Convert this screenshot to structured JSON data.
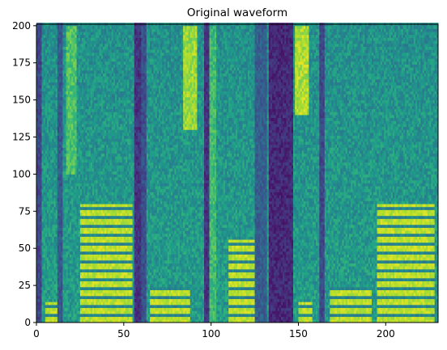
{
  "chart_data": {
    "type": "heatmap",
    "title": "Original waveform",
    "xlabel": "",
    "ylabel": "",
    "colormap": "viridis",
    "xlim": [
      0,
      230
    ],
    "ylim": [
      0,
      201
    ],
    "xticks": [
      0,
      50,
      100,
      150,
      200
    ],
    "yticks": [
      0,
      25,
      50,
      75,
      100,
      125,
      150,
      175,
      200
    ],
    "x_tick_labels": [
      "0",
      "50",
      "100",
      "150",
      "200"
    ],
    "y_tick_labels": [
      "0",
      "25",
      "50",
      "75",
      "100",
      "125",
      "150",
      "175",
      "200"
    ],
    "grid": false,
    "dark_columns": [
      {
        "x0": 0,
        "x1": 3,
        "level": 0.22
      },
      {
        "x0": 12,
        "x1": 15,
        "level": 0.28
      },
      {
        "x0": 56,
        "x1": 60,
        "level": 0.15
      },
      {
        "x0": 60,
        "x1": 63,
        "level": 0.25
      },
      {
        "x0": 96,
        "x1": 99,
        "level": 0.15
      },
      {
        "x0": 125,
        "x1": 132,
        "level": 0.3
      },
      {
        "x0": 133,
        "x1": 147,
        "level": 0.12
      },
      {
        "x0": 162,
        "x1": 165,
        "level": 0.22
      }
    ],
    "bright_regions": [
      {
        "x0": 17,
        "x1": 23,
        "y0": 100,
        "y1": 200,
        "level": 0.72
      },
      {
        "x0": 84,
        "x1": 92,
        "y0": 130,
        "y1": 200,
        "level": 0.85
      },
      {
        "x0": 148,
        "x1": 156,
        "y0": 140,
        "y1": 200,
        "level": 0.88
      },
      {
        "x0": 99,
        "x1": 103,
        "y0": 0,
        "y1": 200,
        "level": 0.68
      }
    ],
    "harmonic_segments": [
      {
        "x0": 5,
        "x1": 12,
        "f0": 6,
        "count": 2,
        "y_top": 14
      },
      {
        "x0": 25,
        "x1": 55,
        "f0": 6,
        "count": 13,
        "y_top": 80
      },
      {
        "x0": 65,
        "x1": 88,
        "f0": 6,
        "count": 4,
        "y_top": 24
      },
      {
        "x0": 110,
        "x1": 125,
        "f0": 6,
        "count": 8,
        "y_top": 55
      },
      {
        "x0": 150,
        "x1": 158,
        "f0": 6,
        "count": 2,
        "y_top": 14
      },
      {
        "x0": 168,
        "x1": 192,
        "f0": 6,
        "count": 4,
        "y_top": 24
      },
      {
        "x0": 195,
        "x1": 228,
        "f0": 6,
        "count": 13,
        "y_top": 80
      }
    ]
  }
}
